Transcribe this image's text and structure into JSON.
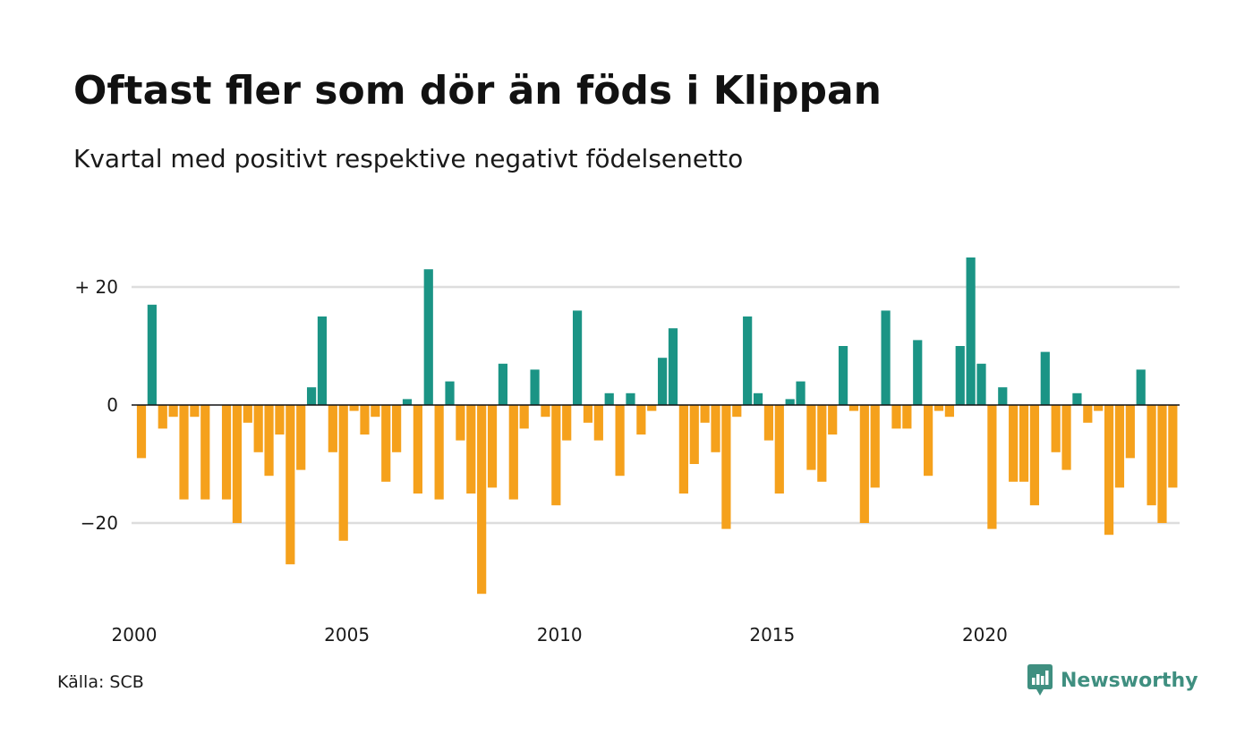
{
  "header": {
    "title": "Oftast fler som dör än föds i Klippan",
    "subtitle": "Kvartal med positivt respektive negativt födelsenetto"
  },
  "footer": {
    "source": "Källa: SCB",
    "brand": "Newsworthy",
    "brand_icon": "newsworthy-chart-bubble-icon"
  },
  "colors": {
    "positive": "#1b9485",
    "negative": "#f5a11c",
    "grid": "#dddddd",
    "brand": "#3f8f80"
  },
  "chart_data": {
    "type": "bar",
    "x_start": 2000,
    "x_step": "quarter",
    "ylim": [
      -33,
      27
    ],
    "yticks": [
      20,
      0,
      -20
    ],
    "ytick_labels": [
      "+ 20",
      "0",
      "−20"
    ],
    "xticks": [
      2000,
      2005,
      2010,
      2015,
      2020
    ],
    "xtick_labels": [
      "2000",
      "2005",
      "2010",
      "2015",
      "2020"
    ],
    "grid": true,
    "values": [
      -9,
      17,
      -4,
      -2,
      -16,
      -2,
      -16,
      0,
      -16,
      -20,
      -3,
      -8,
      -12,
      -5,
      -27,
      -11,
      3,
      15,
      -8,
      -23,
      -1,
      -5,
      -2,
      -13,
      -8,
      1,
      -15,
      23,
      -16,
      4,
      -6,
      -15,
      -32,
      -14,
      7,
      -16,
      -4,
      6,
      -2,
      -17,
      -6,
      16,
      -3,
      -6,
      2,
      -12,
      2,
      -5,
      -1,
      8,
      13,
      -15,
      -10,
      -3,
      -8,
      -21,
      -2,
      15,
      2,
      -6,
      -15,
      1,
      4,
      -11,
      -13,
      -5,
      10,
      -1,
      -20,
      -14,
      16,
      -4,
      -4,
      11,
      -12,
      -1,
      -2,
      10,
      25,
      7,
      -21,
      3,
      -13,
      -13,
      -17,
      9,
      -8,
      -11,
      2,
      -3,
      -1,
      -22,
      -14,
      -9,
      6,
      -17,
      -20,
      -14
    ]
  }
}
